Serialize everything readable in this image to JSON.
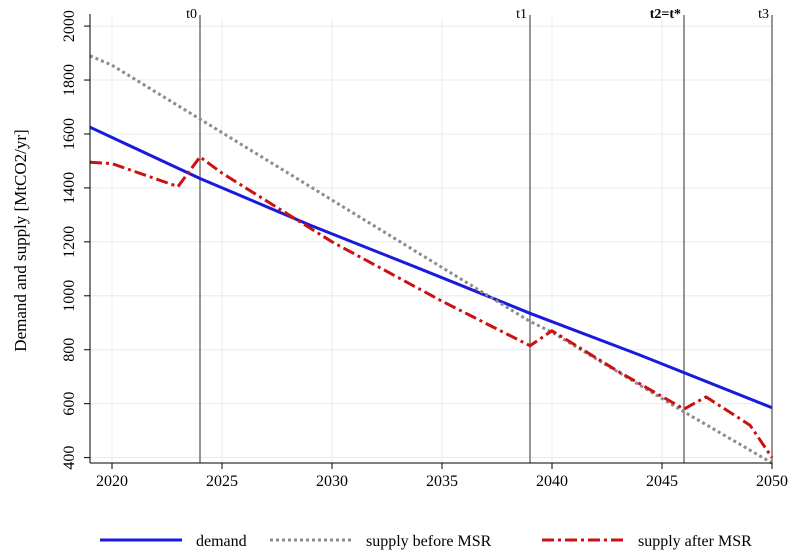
{
  "chart_data": {
    "type": "line",
    "title": "",
    "xlabel": "",
    "ylabel": "Demand and supply [MtCO2/yr]",
    "xlim": [
      2019,
      2050
    ],
    "ylim": [
      380,
      2030
    ],
    "xticks": [
      2020,
      2025,
      2030,
      2035,
      2040,
      2045,
      2050
    ],
    "yticks": [
      400,
      600,
      800,
      1000,
      1200,
      1400,
      1600,
      1800,
      2000
    ],
    "grid": true,
    "legend_position": "bottom",
    "vertical_lines": [
      {
        "label": "t0",
        "x": 2024,
        "bold": false
      },
      {
        "label": "t1",
        "x": 2039,
        "bold": false
      },
      {
        "label": "t2=t*",
        "x": 2046,
        "bold": true
      },
      {
        "label": "t3",
        "x": 2050,
        "bold": false
      }
    ],
    "series": [
      {
        "name": "demand",
        "color": "#1a1adc",
        "style": "solid",
        "x": [
          2019,
          2024,
          2029,
          2034,
          2039,
          2044,
          2050
        ],
        "y": [
          1625,
          1435,
          1262,
          1100,
          935,
          780,
          585
        ]
      },
      {
        "name": "supply before MSR",
        "color": "#8c8c8c",
        "style": "dotted",
        "x": [
          2019,
          2020,
          2024,
          2039,
          2040,
          2046,
          2050
        ],
        "y": [
          1890,
          1855,
          1655,
          905,
          865,
          570,
          380
        ]
      },
      {
        "name": "supply after MSR",
        "color": "#cc1111",
        "style": "dashdot",
        "x": [
          2019,
          2020,
          2023,
          2024,
          2025,
          2030,
          2035,
          2039,
          2040,
          2043,
          2046,
          2047,
          2049,
          2050
        ],
        "y": [
          1495,
          1490,
          1405,
          1515,
          1455,
          1200,
          980,
          815,
          870,
          720,
          580,
          625,
          520,
          400
        ]
      }
    ]
  }
}
